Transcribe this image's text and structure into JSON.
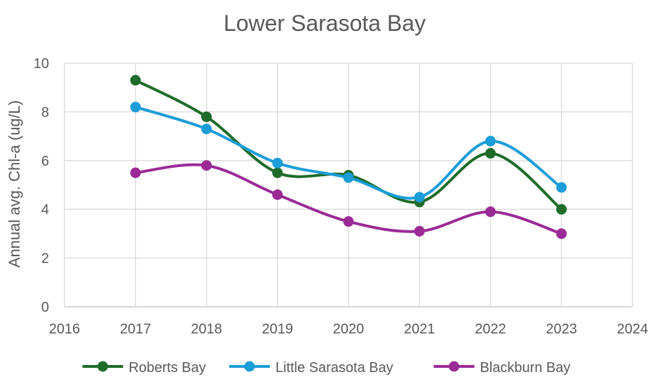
{
  "chart_data": {
    "type": "line",
    "title": "Lower Sarasota Bay",
    "xlabel": "",
    "ylabel": "Annual avg. Chl-a (ug/L)",
    "xlim": [
      2016,
      2024
    ],
    "ylim": [
      0,
      10
    ],
    "xticks": [
      2016,
      2017,
      2018,
      2019,
      2020,
      2021,
      2022,
      2023,
      2024
    ],
    "yticks": [
      0,
      2,
      4,
      6,
      8,
      10
    ],
    "grid": true,
    "smooth": true,
    "legend_position": "bottom",
    "x": [
      2017,
      2018,
      2019,
      2020,
      2021,
      2022,
      2023
    ],
    "series": [
      {
        "name": "Roberts Bay",
        "color": "#1e6b2a",
        "values": [
          9.3,
          7.8,
          5.5,
          5.4,
          4.3,
          6.3,
          4.0
        ]
      },
      {
        "name": "Little Sarasota Bay",
        "color": "#1b9dd8",
        "values": [
          8.2,
          7.3,
          5.9,
          5.3,
          4.5,
          6.8,
          4.9
        ]
      },
      {
        "name": "Blackburn Bay",
        "color": "#9b2a96",
        "values": [
          5.5,
          5.8,
          4.6,
          3.5,
          3.1,
          3.9,
          3.0
        ]
      }
    ]
  }
}
